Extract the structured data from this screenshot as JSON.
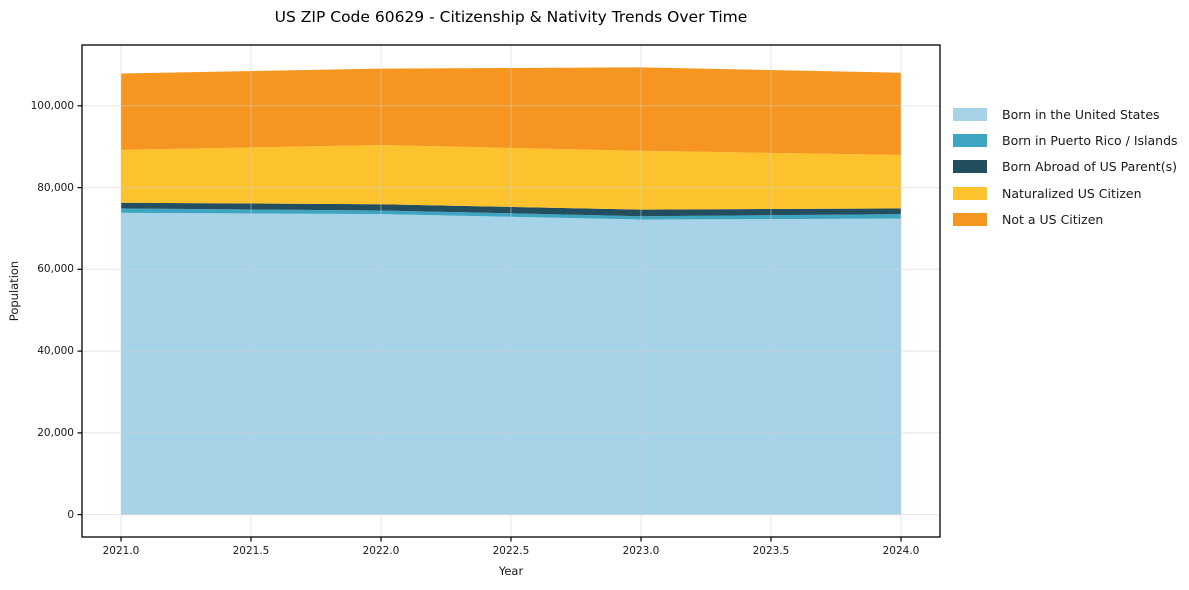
{
  "chart_data": {
    "type": "area",
    "stacked": true,
    "title": "US ZIP Code 60629 - Citizenship & Nativity Trends Over Time",
    "xlabel": "Year",
    "ylabel": "Population",
    "x": [
      2021,
      2022,
      2023,
      2024
    ],
    "series": [
      {
        "name": "Born in the United States",
        "color": "#A7D3E8",
        "values": [
          73800,
          73500,
          72200,
          72400
        ]
      },
      {
        "name": "Born in Puerto Rico / Islands",
        "color": "#3FA6C2",
        "values": [
          1100,
          900,
          800,
          1100
        ]
      },
      {
        "name": "Born Abroad of US Parent(s)",
        "color": "#234E60",
        "values": [
          1400,
          1500,
          1600,
          1400
        ]
      },
      {
        "name": "Naturalized US Citizen",
        "color": "#FDC32F",
        "values": [
          12900,
          14500,
          14400,
          13100
        ]
      },
      {
        "name": "Not a US Citizen",
        "color": "#F6951F",
        "values": [
          18700,
          18700,
          20400,
          20100
        ]
      }
    ],
    "totals": [
      107900,
      109100,
      109400,
      108100
    ],
    "xlim": [
      2020.85,
      2024.15
    ],
    "ylim": [
      -5470,
      114870
    ],
    "grid": true,
    "legend_position": "outside-right",
    "x_ticks": [
      {
        "value": 2021.0,
        "label": "2021.0"
      },
      {
        "value": 2021.5,
        "label": "2021.5"
      },
      {
        "value": 2022.0,
        "label": "2022.0"
      },
      {
        "value": 2022.5,
        "label": "2022.5"
      },
      {
        "value": 2023.0,
        "label": "2023.0"
      },
      {
        "value": 2023.5,
        "label": "2023.5"
      },
      {
        "value": 2024.0,
        "label": "2024.0"
      }
    ],
    "y_ticks": [
      {
        "value": 0,
        "label": "0"
      },
      {
        "value": 20000,
        "label": "20,000"
      },
      {
        "value": 40000,
        "label": "40,000"
      },
      {
        "value": 60000,
        "label": "60,000"
      },
      {
        "value": 80000,
        "label": "80,000"
      },
      {
        "value": 100000,
        "label": "100,000"
      }
    ]
  },
  "colors": {
    "background": "#ffffff",
    "grid": "#d0d0d0",
    "spine": "#000000",
    "text": "#1a1a1a"
  }
}
